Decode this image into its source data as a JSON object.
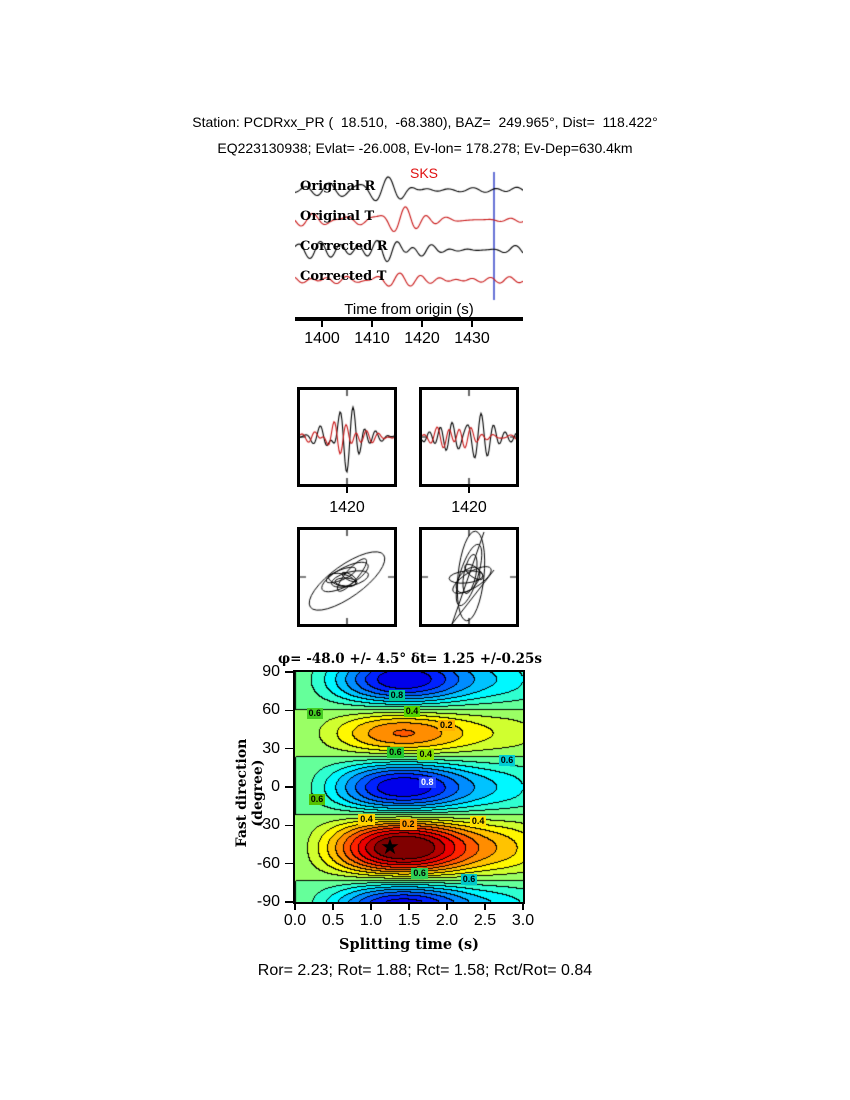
{
  "header": {
    "line1": "Station: PCDRxx_PR (  18.510,  -68.380), BAZ=  249.965°, Dist=  118.422°",
    "line2": "EQ223130938; Evlat= -26.008, Ev-lon= 178.278; Ev-Dep=630.4km"
  },
  "colors": {
    "trace_black": "#000000",
    "trace_red": "#c81414",
    "phase_red": "#e01010",
    "marker_blue": "#4050cc"
  },
  "seismogram": {
    "phase_label": "SKS",
    "traces": [
      {
        "label": "Original R",
        "color": "#000000"
      },
      {
        "label": "Original T",
        "color": "#c81414"
      },
      {
        "label": "Corrected R",
        "color": "#000000"
      },
      {
        "label": "Corrected T",
        "color": "#c81414"
      }
    ],
    "axis_label": "Time from origin (s)",
    "ticks": [
      "1400",
      "1410",
      "1420",
      "1430"
    ]
  },
  "zoom_panels": [
    {
      "tick": "1420"
    },
    {
      "tick": "1420"
    }
  ],
  "contour": {
    "title": "φ= -48.0 +/- 4.5° δt= 1.25 +/-0.25s",
    "ylabel": "Fast direction (degree)",
    "xlabel": "Splitting time (s)",
    "yticks": [
      "90",
      "60",
      "30",
      "0",
      "-30",
      "-60",
      "-90"
    ],
    "xticks": [
      "0.0",
      "0.5",
      "1.0",
      "1.5",
      "2.0",
      "2.5",
      "3.0"
    ],
    "star": {
      "glyph": "★",
      "dt": 1.25,
      "phi": -48
    },
    "contour_labels": [
      {
        "text": "0.8",
        "dt": 1.35,
        "phi": 71,
        "bg": "#00c896",
        "fg": "#000000"
      },
      {
        "text": "0.4",
        "dt": 1.55,
        "phi": 59,
        "bg": "#55d400",
        "fg": "#000000"
      },
      {
        "text": "0.2",
        "dt": 2.0,
        "phi": 48,
        "bg": "#ffb000",
        "fg": "#000000"
      },
      {
        "text": "0.6",
        "dt": 0.27,
        "phi": 57,
        "bg": "#44cc22",
        "fg": "#000000"
      },
      {
        "text": "0.6",
        "dt": 1.33,
        "phi": 27,
        "bg": "#22c832",
        "fg": "#000000"
      },
      {
        "text": "0.4",
        "dt": 1.73,
        "phi": 25,
        "bg": "#8ae000",
        "fg": "#000000"
      },
      {
        "text": "0.6",
        "dt": 2.8,
        "phi": 20,
        "bg": "#00ccd4",
        "fg": "#000000"
      },
      {
        "text": "0.8",
        "dt": 1.75,
        "phi": 3,
        "bg": "#2846ff",
        "fg": "#ffffff"
      },
      {
        "text": "0.6",
        "dt": 0.3,
        "phi": -10,
        "bg": "#55c000",
        "fg": "#000000"
      },
      {
        "text": "0.4",
        "dt": 0.95,
        "phi": -26,
        "bg": "#ffd400",
        "fg": "#000000"
      },
      {
        "text": "0.2",
        "dt": 1.5,
        "phi": -30,
        "bg": "#ff9c00",
        "fg": "#000000"
      },
      {
        "text": "0.4",
        "dt": 2.42,
        "phi": -27,
        "bg": "#ffe000",
        "fg": "#000000"
      },
      {
        "text": "0.6",
        "dt": 1.65,
        "phi": -68,
        "bg": "#2ed058",
        "fg": "#000000"
      },
      {
        "text": "0.6",
        "dt": 2.3,
        "phi": -73,
        "bg": "#00c8c8",
        "fg": "#000000"
      }
    ]
  },
  "footer": {
    "stats": "Ror= 2.23; Rot= 1.88; Rct= 1.58; Rct/Rot= 0.84"
  },
  "chart_data": [
    {
      "type": "line",
      "title": "Radial / transverse seismograms before and after splitting correction",
      "x_axis": {
        "label": "Time from origin (s)",
        "ticks": [
          1400,
          1410,
          1420,
          1430
        ]
      },
      "series": [
        {
          "name": "Original R",
          "color": "#000000"
        },
        {
          "name": "Original T",
          "color": "#c81414"
        },
        {
          "name": "Corrected R",
          "color": "#000000"
        },
        {
          "name": "Corrected T",
          "color": "#c81414"
        }
      ],
      "annotations": [
        {
          "type": "text",
          "text": "SKS",
          "color": "#e01010"
        },
        {
          "type": "vline",
          "x": 1434,
          "color": "#4050cc"
        }
      ],
      "note": "Waveform wiggle shapes are approximations of the plotted traces"
    },
    {
      "type": "line",
      "title": "Zoomed analysis windows (R black, T red)",
      "x_axis": {
        "ticks": [
          1420
        ]
      },
      "panels": 2,
      "note": "Two windows, each with overlapped black and red traces; tick label 1420 under each"
    },
    {
      "type": "scatter",
      "title": "Particle motion before (left, elliptical) and after (right, linearized) correction",
      "panels": 2
    },
    {
      "type": "heatmap",
      "title": "φ= -48.0 +/- 4.5° δt= 1.25 +/-0.25s",
      "xlabel": "Splitting time (s)",
      "ylabel": "Fast direction (degree)",
      "xlim": [
        0,
        3
      ],
      "ylim": [
        -90,
        90
      ],
      "xticks": [
        0.0,
        0.5,
        1.0,
        1.5,
        2.0,
        2.5,
        3.0
      ],
      "yticks": [
        90,
        60,
        30,
        0,
        -30,
        -60,
        -90
      ],
      "best_fit": {
        "fast_direction_deg": -48.0,
        "fast_direction_err_deg": 4.5,
        "delay_time_s": 1.25,
        "delay_time_err_s": 0.25
      },
      "star_at": {
        "x": 1.25,
        "y": -48
      },
      "contour_levels_labeled": [
        0.2,
        0.4,
        0.6,
        0.8
      ],
      "colormap": "rainbow, blue=low green=mid red=high, black contour lines",
      "grid": false,
      "legend": "none"
    },
    {
      "type": "table",
      "values": {
        "Ror": 2.23,
        "Rot": 1.88,
        "Rct": 1.58,
        "Rct/Rot": 0.84
      }
    }
  ]
}
